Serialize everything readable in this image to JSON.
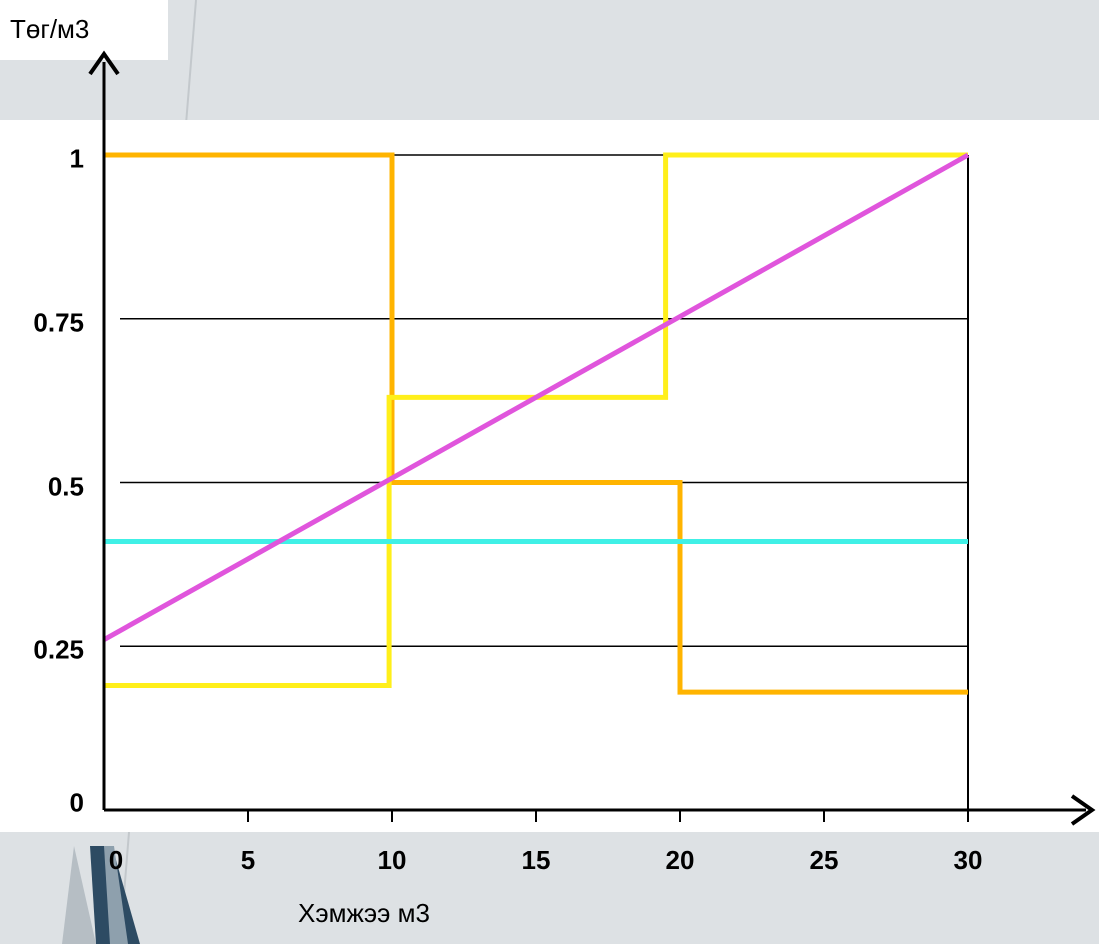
{
  "chart_data": {
    "type": "line",
    "ylabel": "Төг/м3",
    "xlabel": "Хэмжээ м3",
    "xlim": [
      0,
      30
    ],
    "ylim": [
      0,
      1
    ],
    "x_ticks": [
      "0",
      "5",
      "10",
      "15",
      "20",
      "25",
      "30"
    ],
    "y_ticks": [
      "0",
      "0.25",
      "0.5",
      "0.75",
      "1"
    ],
    "x_tick_values": [
      0,
      5,
      10,
      15,
      20,
      25,
      30
    ],
    "y_tick_values": [
      0,
      0.25,
      0.5,
      0.75,
      1
    ],
    "grid": "horizontal",
    "series": [
      {
        "color": "#ffb400",
        "step": true,
        "points": [
          [
            0,
            1.0
          ],
          [
            10,
            1.0
          ],
          [
            10,
            0.5
          ],
          [
            20,
            0.5
          ],
          [
            20,
            0.18
          ],
          [
            30,
            0.18
          ]
        ]
      },
      {
        "color": "#ffef1a",
        "step": true,
        "points": [
          [
            0,
            0.19
          ],
          [
            9.9,
            0.19
          ],
          [
            9.9,
            0.63
          ],
          [
            19.5,
            0.63
          ],
          [
            19.5,
            1.0
          ],
          [
            30,
            1.0
          ]
        ]
      },
      {
        "color": "#40f0e6",
        "step": false,
        "points": [
          [
            0,
            0.41
          ],
          [
            30,
            0.41
          ]
        ]
      },
      {
        "color": "#e055dc",
        "step": false,
        "points": [
          [
            0,
            0.26
          ],
          [
            30,
            1.0
          ]
        ]
      }
    ]
  }
}
